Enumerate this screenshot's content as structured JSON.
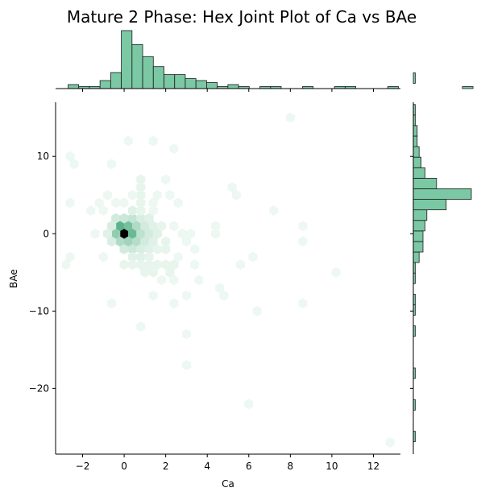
{
  "chart_data": {
    "type": "hexbin_joint",
    "title": "Mature 2 Phase: Hex Joint Plot of Ca vs BAe",
    "xlabel": "Ca",
    "ylabel": "BAe",
    "xlim": [
      -3.3,
      13.3
    ],
    "ylim": [
      -28.5,
      17
    ],
    "xticks": [
      -2,
      0,
      2,
      4,
      6,
      8,
      10,
      12
    ],
    "xtick_labels": [
      "−2",
      "0",
      "2",
      "4",
      "6",
      "8",
      "10",
      "12"
    ],
    "yticks": [
      -20,
      -10,
      0,
      10
    ],
    "ytick_labels": [
      "−20",
      "−10",
      "0",
      "10"
    ],
    "colors": {
      "bar_fill": "#7bc8a4",
      "bar_edge": "#1a1a1a",
      "hex_max": "#000000",
      "hex_high": "#5cb48c",
      "hex_low": "#eef8f2"
    },
    "hex_bins": [
      {
        "x": 0.0,
        "y": 0.0,
        "count": 60
      },
      {
        "x": -0.2,
        "y": 1.0,
        "count": 22
      },
      {
        "x": 0.2,
        "y": 1.0,
        "count": 18
      },
      {
        "x": 0.4,
        "y": 0.0,
        "count": 20
      },
      {
        "x": -0.4,
        "y": 0.0,
        "count": 14
      },
      {
        "x": 0.2,
        "y": -1.0,
        "count": 12
      },
      {
        "x": -0.2,
        "y": -1.0,
        "count": 10
      },
      {
        "x": 0.6,
        "y": 1.0,
        "count": 10
      },
      {
        "x": 0.6,
        "y": -1.0,
        "count": 9
      },
      {
        "x": 0.8,
        "y": 0.0,
        "count": 8
      },
      {
        "x": 0.4,
        "y": 2.0,
        "count": 7
      },
      {
        "x": -0.4,
        "y": 2.0,
        "count": 5
      },
      {
        "x": 0.0,
        "y": 2.0,
        "count": 6
      },
      {
        "x": 0.4,
        "y": -2.0,
        "count": 6
      },
      {
        "x": 0.0,
        "y": -2.0,
        "count": 5
      },
      {
        "x": 1.0,
        "y": 1.0,
        "count": 5
      },
      {
        "x": 1.0,
        "y": -1.0,
        "count": 5
      },
      {
        "x": 1.2,
        "y": 0.0,
        "count": 5
      },
      {
        "x": 0.8,
        "y": -2.0,
        "count": 4
      },
      {
        "x": 0.8,
        "y": 2.0,
        "count": 4
      },
      {
        "x": -0.6,
        "y": -1.0,
        "count": 4
      },
      {
        "x": -0.6,
        "y": 1.0,
        "count": 4
      },
      {
        "x": -0.8,
        "y": 0.0,
        "count": 3
      },
      {
        "x": 1.6,
        "y": 0.0,
        "count": 3
      },
      {
        "x": 1.4,
        "y": 1.0,
        "count": 3
      },
      {
        "x": 1.4,
        "y": -1.0,
        "count": 3
      },
      {
        "x": 1.2,
        "y": -2.0,
        "count": 3
      },
      {
        "x": 1.2,
        "y": 2.0,
        "count": 3
      },
      {
        "x": 0.4,
        "y": 3.0,
        "count": 3
      },
      {
        "x": 0.4,
        "y": -3.0,
        "count": 3
      },
      {
        "x": 0.8,
        "y": 3.0,
        "count": 2
      },
      {
        "x": 0.8,
        "y": -3.0,
        "count": 3
      },
      {
        "x": 1.2,
        "y": -3.0,
        "count": 2
      },
      {
        "x": 1.6,
        "y": -2.0,
        "count": 2
      },
      {
        "x": 2.0,
        "y": -1.0,
        "count": 2
      },
      {
        "x": 2.0,
        "y": -2.0,
        "count": 2
      },
      {
        "x": 1.8,
        "y": 1.0,
        "count": 2
      },
      {
        "x": 0.0,
        "y": -4.0,
        "count": 2
      },
      {
        "x": 0.4,
        "y": -4.0,
        "count": 2
      },
      {
        "x": 0.8,
        "y": -4.0,
        "count": 2
      },
      {
        "x": 1.2,
        "y": -4.0,
        "count": 2
      },
      {
        "x": 1.6,
        "y": -4.0,
        "count": 2
      },
      {
        "x": 2.0,
        "y": -4.0,
        "count": 2
      },
      {
        "x": 1.0,
        "y": -5.0,
        "count": 2
      },
      {
        "x": 1.4,
        "y": -5.0,
        "count": 2
      },
      {
        "x": 2.2,
        "y": -5.0,
        "count": 2
      },
      {
        "x": 2.4,
        "y": -4.0,
        "count": 2
      },
      {
        "x": 2.6,
        "y": -3.0,
        "count": 1
      },
      {
        "x": 2.4,
        "y": -6.0,
        "count": 1
      },
      {
        "x": 1.8,
        "y": -6.0,
        "count": 1
      },
      {
        "x": 0.8,
        "y": 4.0,
        "count": 2
      },
      {
        "x": 0.8,
        "y": 5.0,
        "count": 2
      },
      {
        "x": 0.8,
        "y": 6.0,
        "count": 2
      },
      {
        "x": 0.8,
        "y": 7.0,
        "count": 2
      },
      {
        "x": 0.4,
        "y": 5.0,
        "count": 1
      },
      {
        "x": 0.0,
        "y": 4.0,
        "count": 1
      },
      {
        "x": -0.4,
        "y": 4.0,
        "count": 1
      },
      {
        "x": -1.2,
        "y": 4.0,
        "count": 1
      },
      {
        "x": -2.6,
        "y": 4.0,
        "count": 1
      },
      {
        "x": -1.0,
        "y": 3.0,
        "count": 1
      },
      {
        "x": -1.4,
        "y": 0.0,
        "count": 1
      },
      {
        "x": -1.0,
        "y": -3.0,
        "count": 1
      },
      {
        "x": -2.6,
        "y": -3.0,
        "count": 1
      },
      {
        "x": -2.8,
        "y": -4.0,
        "count": 1
      },
      {
        "x": -2.4,
        "y": 9.0,
        "count": 1
      },
      {
        "x": -2.6,
        "y": 10.0,
        "count": 1
      },
      {
        "x": -0.8,
        "y": 5.0,
        "count": 1
      },
      {
        "x": -1.6,
        "y": 3.0,
        "count": 1
      },
      {
        "x": 1.4,
        "y": 4.0,
        "count": 1
      },
      {
        "x": 1.6,
        "y": 5.0,
        "count": 1
      },
      {
        "x": 1.4,
        "y": 3.0,
        "count": 1
      },
      {
        "x": 2.2,
        "y": 5.0,
        "count": 1
      },
      {
        "x": 2.6,
        "y": 4.0,
        "count": 1
      },
      {
        "x": 2.0,
        "y": 7.0,
        "count": 1
      },
      {
        "x": 2.4,
        "y": 11.0,
        "count": 1
      },
      {
        "x": 0.2,
        "y": 12.0,
        "count": 1
      },
      {
        "x": 1.4,
        "y": 12.0,
        "count": 1
      },
      {
        "x": -0.6,
        "y": 9.0,
        "count": 1
      },
      {
        "x": 2.4,
        "y": 1.0,
        "count": 1
      },
      {
        "x": 2.8,
        "y": 0.0,
        "count": 1
      },
      {
        "x": 3.0,
        "y": -1.0,
        "count": 1
      },
      {
        "x": 3.2,
        "y": 0.0,
        "count": 1
      },
      {
        "x": 3.4,
        "y": -2.0,
        "count": 1
      },
      {
        "x": 3.4,
        "y": -4.0,
        "count": 1
      },
      {
        "x": 3.6,
        "y": -6.0,
        "count": 1
      },
      {
        "x": 4.4,
        "y": 0.0,
        "count": 1
      },
      {
        "x": 4.4,
        "y": 1.0,
        "count": 1
      },
      {
        "x": 5.2,
        "y": 6.0,
        "count": 1
      },
      {
        "x": 5.4,
        "y": 5.0,
        "count": 1
      },
      {
        "x": 5.6,
        "y": -4.0,
        "count": 1
      },
      {
        "x": 6.2,
        "y": -3.0,
        "count": 1
      },
      {
        "x": 4.6,
        "y": -7.0,
        "count": 1
      },
      {
        "x": 4.8,
        "y": -8.0,
        "count": 1
      },
      {
        "x": 6.4,
        "y": -10.0,
        "count": 1
      },
      {
        "x": 3.0,
        "y": -8.0,
        "count": 1
      },
      {
        "x": 2.4,
        "y": -9.0,
        "count": 1
      },
      {
        "x": 1.4,
        "y": -8.0,
        "count": 1
      },
      {
        "x": -0.6,
        "y": -9.0,
        "count": 1
      },
      {
        "x": 0.8,
        "y": -12.0,
        "count": 1
      },
      {
        "x": 3.0,
        "y": -13.0,
        "count": 1
      },
      {
        "x": 3.0,
        "y": -17.0,
        "count": 1
      },
      {
        "x": 6.0,
        "y": -22.0,
        "count": 1
      },
      {
        "x": 7.2,
        "y": 3.0,
        "count": 1
      },
      {
        "x": 8.6,
        "y": 1.0,
        "count": 1
      },
      {
        "x": 8.6,
        "y": -1.0,
        "count": 1
      },
      {
        "x": 8.6,
        "y": -9.0,
        "count": 1
      },
      {
        "x": 10.2,
        "y": -5.0,
        "count": 1
      },
      {
        "x": 8.0,
        "y": 15.0,
        "count": 1
      },
      {
        "x": 12.8,
        "y": -27.0,
        "count": 1
      }
    ],
    "x_histogram": {
      "bin_start": -2.7,
      "bin_width": 0.513,
      "counts": [
        2,
        1,
        1,
        4,
        8,
        29,
        22,
        16,
        11,
        7,
        7,
        5,
        4,
        3,
        1,
        2,
        1,
        0,
        1,
        1,
        0,
        0,
        1,
        0,
        0,
        1,
        1,
        0,
        0,
        0,
        1,
        0,
        0,
        0,
        0,
        0,
        0,
        1
      ]
    },
    "y_histogram": {
      "bin_start": -26.9,
      "bin_width": 1.363,
      "counts": [
        1,
        0,
        0,
        1,
        0,
        0,
        1,
        0,
        0,
        0,
        1,
        0,
        1,
        1,
        0,
        1,
        1,
        3,
        5,
        5,
        6,
        7,
        17,
        30,
        12,
        6,
        4,
        3,
        2,
        2,
        1,
        1,
        0,
        0,
        1,
        0,
        0,
        0,
        0,
        0,
        0,
        0,
        0,
        1
      ]
    }
  }
}
